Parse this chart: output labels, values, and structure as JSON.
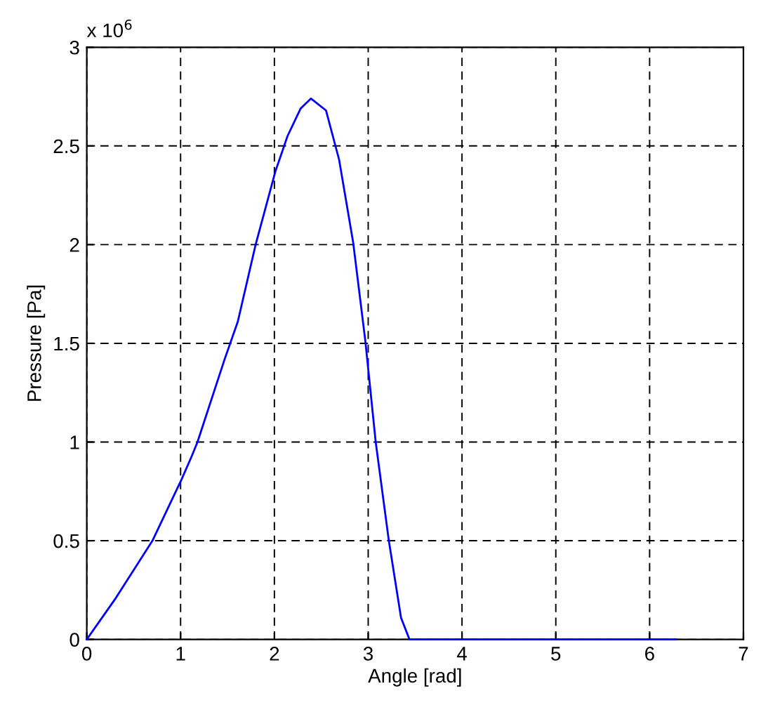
{
  "chart_data": {
    "type": "line",
    "xlabel": "Angle [rad]",
    "ylabel": "Pressure [Pa]",
    "annotations": [
      "x 10$^{6}$"
    ],
    "series": [
      {
        "color": "#0000ff",
        "x": [
          0,
          0.31,
          0.7,
          1.01,
          1.12,
          1.18,
          1.47,
          1.61,
          1.8,
          2.01,
          2.14,
          2.28,
          2.39,
          2.55,
          2.69,
          2.84,
          2.97,
          3.08,
          3.22,
          3.35,
          3.44,
          6.28
        ],
        "values": [
          0,
          0.21,
          0.5,
          0.81,
          0.93,
          1.0,
          1.42,
          1.61,
          2.0,
          2.37,
          2.55,
          2.69,
          2.74,
          2.68,
          2.43,
          2.01,
          1.51,
          1.0,
          0.5,
          0.11,
          0,
          0
        ]
      }
    ],
    "xlim": [
      0,
      7
    ],
    "ylim": [
      0,
      3
    ],
    "xticks": [
      0,
      1,
      2,
      3,
      4,
      5,
      6,
      7
    ],
    "yticks": [
      0,
      0.5,
      1,
      1.5,
      2,
      2.5,
      3
    ],
    "grid": true,
    "line_style": "solid",
    "marker": "none"
  }
}
